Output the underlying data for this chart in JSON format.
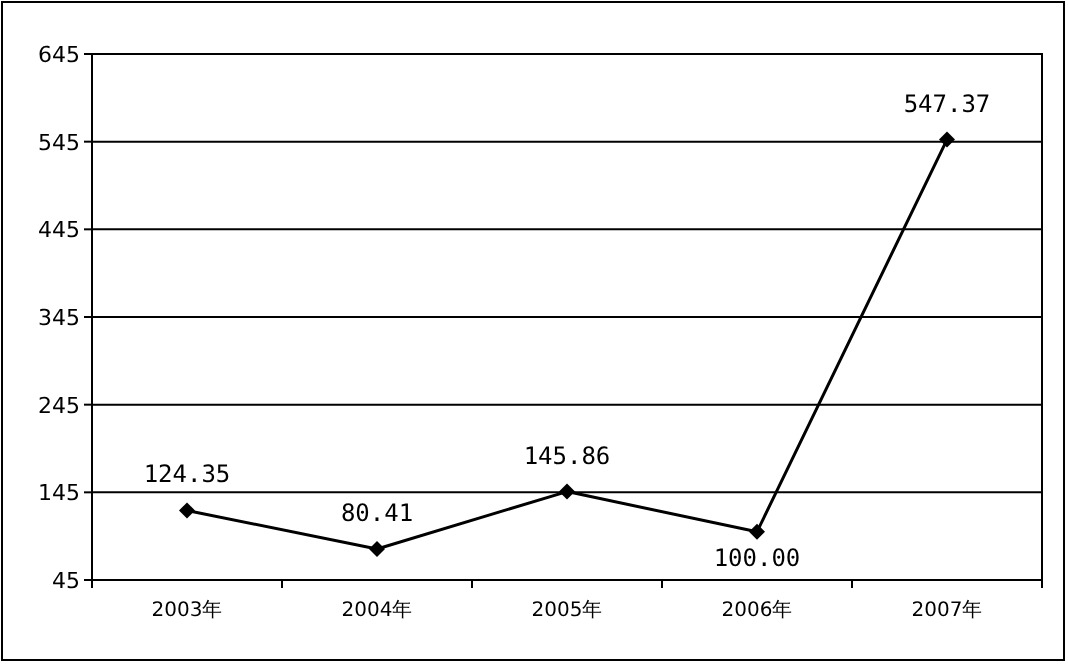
{
  "chart_data": {
    "type": "line",
    "categories": [
      "2003年",
      "2004年",
      "2005年",
      "2006年",
      "2007年"
    ],
    "series": [
      {
        "color": "#000000",
        "values": [
          124.35,
          80.41,
          145.86,
          100.0,
          547.37
        ],
        "value_labels": [
          "124.35",
          "80.41",
          "145.86",
          "100.00",
          "547.37"
        ]
      }
    ],
    "ylim": [
      45,
      645
    ],
    "yticks": [
      45,
      145,
      245,
      345,
      445,
      545,
      645
    ],
    "grid": "y",
    "marker": "diamond",
    "line_style": "solid"
  }
}
